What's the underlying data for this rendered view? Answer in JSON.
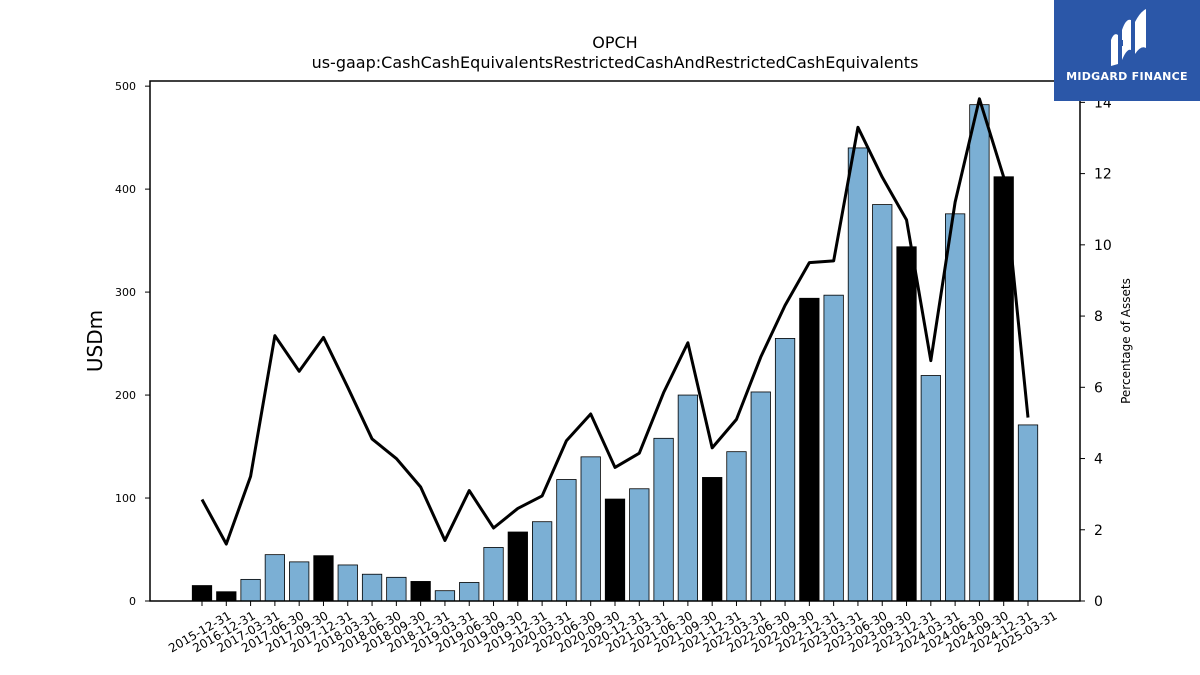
{
  "chart_data": {
    "type": "bar",
    "title": "OPCH",
    "subtitle": "us-gaap:CashCashEquivalentsRestrictedCashAndRestrictedCashEquivalents",
    "ylabel": "USDm",
    "y2label": "Percentage of Assets",
    "ylim": [
      0,
      505
    ],
    "y2lim": [
      0,
      14.6
    ],
    "yticks": [
      0,
      100,
      200,
      300,
      400,
      500
    ],
    "y2ticks": [
      0,
      2,
      4,
      6,
      8,
      10,
      12,
      14
    ],
    "categories": [
      "2015-12-31",
      "2016-12-31",
      "2017-03-31",
      "2017-06-30",
      "2017-09-30",
      "2017-12-31",
      "2018-03-31",
      "2018-06-30",
      "2018-09-30",
      "2018-12-31",
      "2019-03-31",
      "2019-06-30",
      "2019-09-30",
      "2019-12-31",
      "2020-03-31",
      "2020-06-30",
      "2020-09-30",
      "2020-12-31",
      "2021-03-31",
      "2021-06-30",
      "2021-09-30",
      "2021-12-31",
      "2022-03-31",
      "2022-06-30",
      "2022-09-30",
      "2022-12-31",
      "2023-03-31",
      "2023-06-30",
      "2023-09-30",
      "2023-12-31",
      "2024-03-31",
      "2024-06-30",
      "2024-09-30",
      "2024-12-31",
      "2025-03-31"
    ],
    "values": [
      15,
      9,
      21,
      45,
      38,
      44,
      35,
      26,
      23,
      19,
      10,
      18,
      52,
      67,
      77,
      118,
      140,
      99,
      109,
      158,
      200,
      120,
      145,
      203,
      255,
      294,
      297,
      440,
      385,
      344,
      219,
      376,
      482,
      412,
      171
    ],
    "year_end": [
      true,
      true,
      false,
      false,
      false,
      true,
      false,
      false,
      false,
      true,
      false,
      false,
      false,
      true,
      false,
      false,
      false,
      true,
      false,
      false,
      false,
      true,
      false,
      false,
      false,
      true,
      false,
      false,
      false,
      true,
      false,
      false,
      false,
      true,
      false
    ],
    "pct_of_assets": [
      2.85,
      1.6,
      3.5,
      7.45,
      6.45,
      7.4,
      6.0,
      4.55,
      4.0,
      3.2,
      1.7,
      3.1,
      2.05,
      2.6,
      2.95,
      4.5,
      5.25,
      3.75,
      4.15,
      5.85,
      7.25,
      4.3,
      5.1,
      6.85,
      8.3,
      9.5,
      9.55,
      13.3,
      11.9,
      10.7,
      6.75,
      11.2,
      14.1,
      11.9,
      5.15
    ],
    "colors": {
      "year_end_bar": "#000000",
      "quarter_bar": "#7bafd4",
      "line": "#000000"
    },
    "grid": false
  },
  "logo": {
    "text": "MIDGARD FINANCE",
    "bg": "#2b57a8"
  }
}
